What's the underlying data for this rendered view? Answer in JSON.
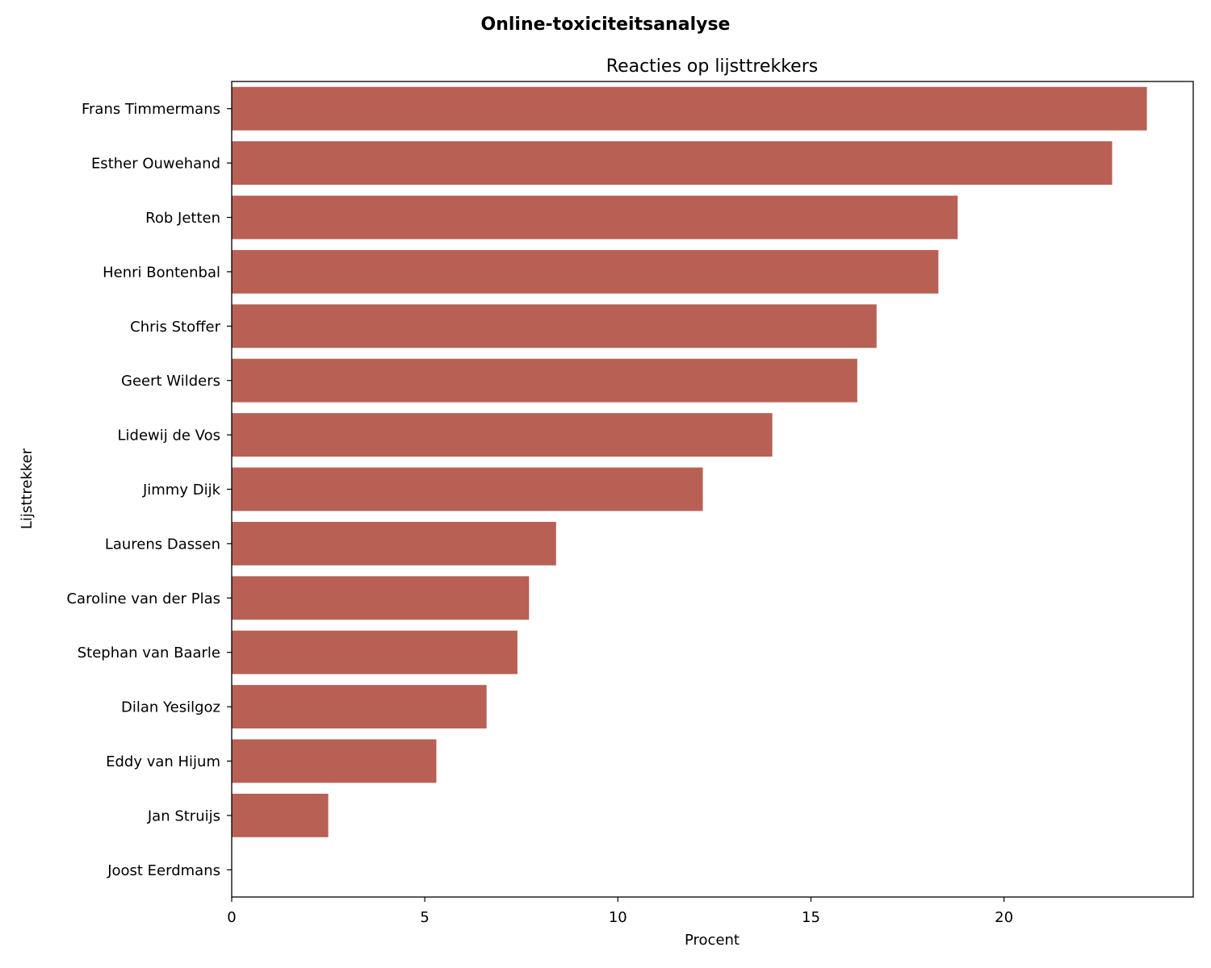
{
  "suptitle": "Online-toxiciteitsanalyse",
  "chart_data": {
    "type": "bar",
    "orientation": "horizontal",
    "title": "Reacties op lijsttrekkers",
    "xlabel": "Procent",
    "ylabel": "Lijsttrekker",
    "categories": [
      "Frans Timmermans",
      "Esther Ouwehand",
      "Rob Jetten",
      "Henri Bontenbal",
      "Chris Stoffer",
      "Geert Wilders",
      "Lidewij de Vos",
      "Jimmy Dijk",
      "Laurens Dassen",
      "Caroline van der Plas",
      "Stephan van Baarle",
      "Dilan Yesilgoz",
      "Eddy van Hijum",
      "Jan Struijs",
      "Joost Eerdmans"
    ],
    "values": [
      23.7,
      22.8,
      18.8,
      18.3,
      16.7,
      16.2,
      14.0,
      12.2,
      8.4,
      7.7,
      7.4,
      6.6,
      5.3,
      2.5,
      0.0
    ],
    "xlim": [
      0,
      24.9
    ],
    "xticks": [
      0,
      5,
      10,
      15,
      20
    ],
    "grid": false,
    "bar_color": "#b86054"
  }
}
